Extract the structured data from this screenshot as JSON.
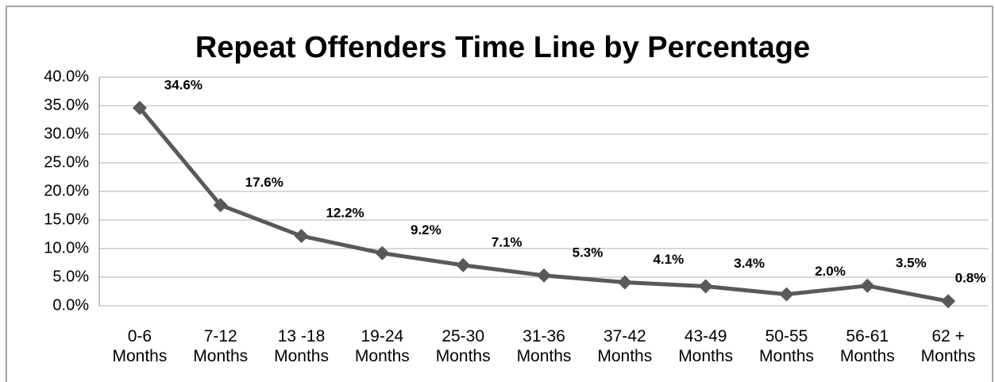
{
  "chart_data": {
    "type": "line",
    "title": "Repeat Offenders Time Line by Percentage",
    "categories": [
      "0-6 Months",
      "7-12 Months",
      "13 -18 Months",
      "19-24 Months",
      "25-30 Months",
      "31-36 Months",
      "37-42 Months",
      "43-49 Months",
      "50-55 Months",
      "56-61 Months",
      "62 + Months"
    ],
    "series": [
      {
        "name": "Repeat Offenders",
        "color": "#595959",
        "values": [
          34.6,
          17.6,
          12.2,
          9.2,
          7.1,
          5.3,
          4.1,
          3.4,
          2.0,
          3.5,
          0.8
        ],
        "value_labels": [
          "34.6%",
          "17.6%",
          "12.2%",
          "9.2%",
          "7.1%",
          "5.3%",
          "4.1%",
          "3.4%",
          "2.0%",
          "3.5%",
          "0.8%"
        ]
      }
    ],
    "ylim": [
      0,
      40
    ],
    "yticks": [
      {
        "value": 0,
        "label": "0.0%"
      },
      {
        "value": 5,
        "label": "5.0%"
      },
      {
        "value": 10,
        "label": "10.0%"
      },
      {
        "value": 15,
        "label": "15.0%"
      },
      {
        "value": 20,
        "label": "20.0%"
      },
      {
        "value": 25,
        "label": "25.0%"
      },
      {
        "value": 30,
        "label": "30.0%"
      },
      {
        "value": 35,
        "label": "35.0%"
      },
      {
        "value": 40,
        "label": "40.0%"
      }
    ],
    "grid": true
  }
}
